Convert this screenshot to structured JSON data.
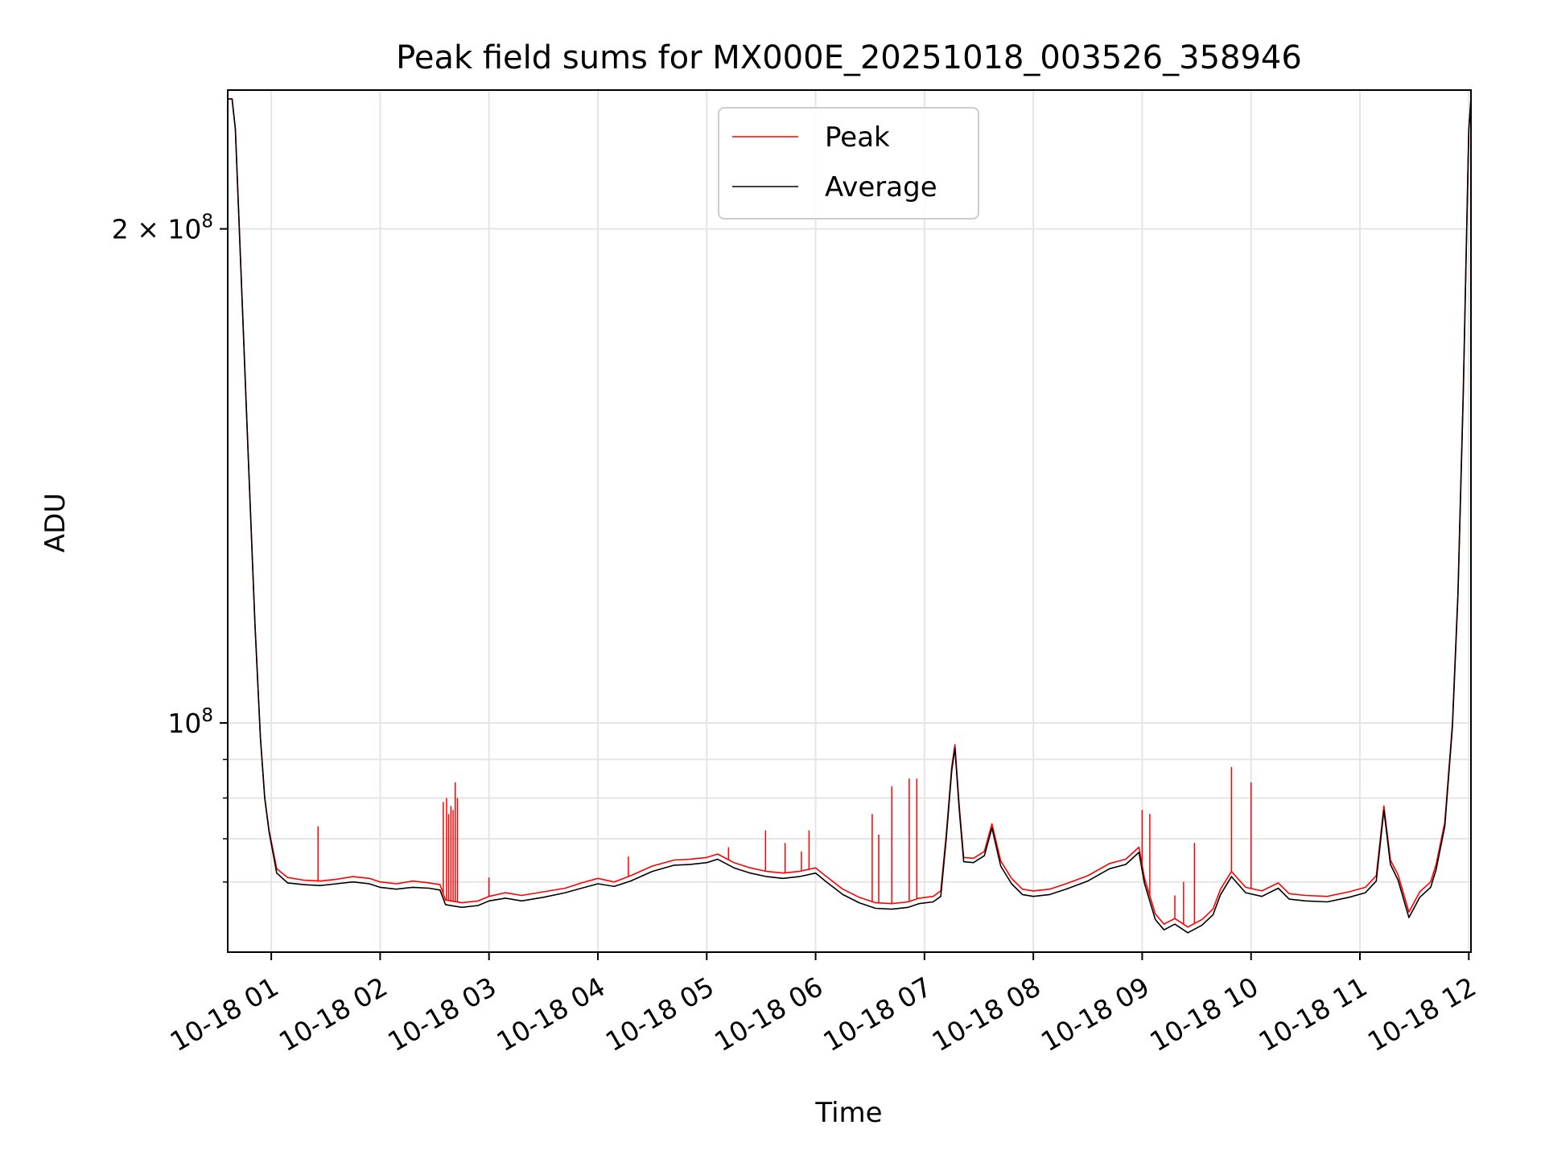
{
  "chart_data": {
    "type": "line",
    "title": "Peak field sums for MX000E_20251018_003526_358946",
    "xlabel": "Time",
    "ylabel": "ADU",
    "yscale": "log",
    "xlim": [
      0.6,
      12.02
    ],
    "ylim": [
      72500000,
      243000000
    ],
    "grid": true,
    "legend_position": "upper center",
    "x_ticks": [
      1,
      2,
      3,
      4,
      5,
      6,
      7,
      8,
      9,
      10,
      11,
      12
    ],
    "x_tick_labels": [
      "10-18 01",
      "10-18 02",
      "10-18 03",
      "10-18 04",
      "10-18 05",
      "10-18 06",
      "10-18 07",
      "10-18 08",
      "10-18 09",
      "10-18 10",
      "10-18 11",
      "10-18 12"
    ],
    "y_major_ticks": [
      100000000,
      200000000
    ],
    "y_major_tick_labels": [
      {
        "base": "10",
        "exp": "8",
        "prefix": ""
      },
      {
        "base": "10",
        "exp": "8",
        "prefix": "2 × "
      }
    ],
    "y_minor_ticks": [
      80000000,
      85000000,
      90000000,
      95000000
    ],
    "series": [
      {
        "name": "Peak",
        "color": "#ff0000",
        "points": [
          [
            0.6,
            240000000
          ],
          [
            0.64,
            240000000
          ],
          [
            0.67,
            230000000
          ],
          [
            0.72,
            190000000
          ],
          [
            0.78,
            150000000
          ],
          [
            0.85,
            115000000
          ],
          [
            0.9,
            98000000
          ],
          [
            0.94,
            90000000
          ],
          [
            0.98,
            86000000
          ],
          [
            1.05,
            81500000
          ],
          [
            1.15,
            80500000
          ],
          [
            1.3,
            80200000
          ],
          [
            1.45,
            80100000
          ],
          [
            1.6,
            80300000
          ],
          [
            1.75,
            80600000
          ],
          [
            1.9,
            80400000
          ],
          [
            2.0,
            80000000
          ],
          [
            2.15,
            79800000
          ],
          [
            2.3,
            80100000
          ],
          [
            2.45,
            79900000
          ],
          [
            2.55,
            79700000
          ],
          [
            2.6,
            78000000
          ],
          [
            2.75,
            77700000
          ],
          [
            2.9,
            77900000
          ],
          [
            3.0,
            78400000
          ],
          [
            3.15,
            78800000
          ],
          [
            3.3,
            78500000
          ],
          [
            3.5,
            78900000
          ],
          [
            3.7,
            79300000
          ],
          [
            3.85,
            79900000
          ],
          [
            4.0,
            80400000
          ],
          [
            4.15,
            80000000
          ],
          [
            4.3,
            80700000
          ],
          [
            4.5,
            81800000
          ],
          [
            4.7,
            82500000
          ],
          [
            4.85,
            82600000
          ],
          [
            5.0,
            82800000
          ],
          [
            5.1,
            83200000
          ],
          [
            5.25,
            82200000
          ],
          [
            5.4,
            81600000
          ],
          [
            5.55,
            81200000
          ],
          [
            5.7,
            81000000
          ],
          [
            5.85,
            81200000
          ],
          [
            6.0,
            81600000
          ],
          [
            6.1,
            80600000
          ],
          [
            6.25,
            79200000
          ],
          [
            6.4,
            78300000
          ],
          [
            6.55,
            77700000
          ],
          [
            6.7,
            77600000
          ],
          [
            6.85,
            77800000
          ],
          [
            6.95,
            78200000
          ],
          [
            7.08,
            78400000
          ],
          [
            7.15,
            79000000
          ],
          [
            7.2,
            85500000
          ],
          [
            7.25,
            94000000
          ],
          [
            7.28,
            97000000
          ],
          [
            7.32,
            89000000
          ],
          [
            7.36,
            82800000
          ],
          [
            7.45,
            82700000
          ],
          [
            7.55,
            83500000
          ],
          [
            7.62,
            86800000
          ],
          [
            7.7,
            82400000
          ],
          [
            7.8,
            80400000
          ],
          [
            7.9,
            79200000
          ],
          [
            8.0,
            79000000
          ],
          [
            8.15,
            79200000
          ],
          [
            8.3,
            79800000
          ],
          [
            8.5,
            80700000
          ],
          [
            8.7,
            82100000
          ],
          [
            8.85,
            82600000
          ],
          [
            8.97,
            84000000
          ],
          [
            9.02,
            80500000
          ],
          [
            9.12,
            76500000
          ],
          [
            9.2,
            75400000
          ],
          [
            9.3,
            76000000
          ],
          [
            9.42,
            75100000
          ],
          [
            9.55,
            75900000
          ],
          [
            9.65,
            77000000
          ],
          [
            9.72,
            79200000
          ],
          [
            9.82,
            81200000
          ],
          [
            9.95,
            79400000
          ],
          [
            10.1,
            79000000
          ],
          [
            10.25,
            79900000
          ],
          [
            10.35,
            78700000
          ],
          [
            10.5,
            78500000
          ],
          [
            10.7,
            78400000
          ],
          [
            10.9,
            78900000
          ],
          [
            11.05,
            79400000
          ],
          [
            11.15,
            80700000
          ],
          [
            11.22,
            89000000
          ],
          [
            11.28,
            82500000
          ],
          [
            11.35,
            80800000
          ],
          [
            11.45,
            76700000
          ],
          [
            11.55,
            78900000
          ],
          [
            11.65,
            80000000
          ],
          [
            11.7,
            82000000
          ],
          [
            11.78,
            87000000
          ],
          [
            11.85,
            100000000
          ],
          [
            11.9,
            120000000
          ],
          [
            11.95,
            160000000
          ],
          [
            12.0,
            230000000
          ],
          [
            12.02,
            240000000
          ]
        ]
      },
      {
        "name": "Average",
        "color": "#000000",
        "points": [
          [
            0.6,
            240000000
          ],
          [
            0.64,
            240000000
          ],
          [
            0.67,
            230000000
          ],
          [
            0.72,
            190000000
          ],
          [
            0.78,
            150000000
          ],
          [
            0.85,
            115000000
          ],
          [
            0.9,
            98000000
          ],
          [
            0.94,
            90000000
          ],
          [
            0.98,
            85800000
          ],
          [
            1.05,
            81000000
          ],
          [
            1.15,
            79900000
          ],
          [
            1.3,
            79700000
          ],
          [
            1.45,
            79600000
          ],
          [
            1.6,
            79800000
          ],
          [
            1.75,
            80000000
          ],
          [
            1.9,
            79800000
          ],
          [
            2.0,
            79400000
          ],
          [
            2.15,
            79200000
          ],
          [
            2.3,
            79400000
          ],
          [
            2.45,
            79300000
          ],
          [
            2.55,
            79100000
          ],
          [
            2.6,
            77500000
          ],
          [
            2.75,
            77200000
          ],
          [
            2.9,
            77400000
          ],
          [
            3.0,
            77900000
          ],
          [
            3.15,
            78200000
          ],
          [
            3.3,
            77900000
          ],
          [
            3.5,
            78300000
          ],
          [
            3.7,
            78800000
          ],
          [
            3.85,
            79300000
          ],
          [
            4.0,
            79800000
          ],
          [
            4.15,
            79500000
          ],
          [
            4.3,
            80100000
          ],
          [
            4.5,
            81200000
          ],
          [
            4.7,
            81900000
          ],
          [
            4.85,
            82000000
          ],
          [
            5.0,
            82200000
          ],
          [
            5.1,
            82600000
          ],
          [
            5.25,
            81600000
          ],
          [
            5.4,
            81000000
          ],
          [
            5.55,
            80600000
          ],
          [
            5.7,
            80400000
          ],
          [
            5.85,
            80600000
          ],
          [
            6.0,
            81000000
          ],
          [
            6.1,
            80000000
          ],
          [
            6.25,
            78600000
          ],
          [
            6.4,
            77700000
          ],
          [
            6.55,
            77100000
          ],
          [
            6.7,
            77000000
          ],
          [
            6.85,
            77200000
          ],
          [
            6.95,
            77600000
          ],
          [
            7.08,
            77800000
          ],
          [
            7.15,
            78400000
          ],
          [
            7.2,
            85000000
          ],
          [
            7.25,
            93500000
          ],
          [
            7.28,
            96500000
          ],
          [
            7.32,
            88500000
          ],
          [
            7.36,
            82300000
          ],
          [
            7.45,
            82200000
          ],
          [
            7.55,
            83000000
          ],
          [
            7.62,
            86300000
          ],
          [
            7.7,
            81800000
          ],
          [
            7.8,
            79800000
          ],
          [
            7.9,
            78600000
          ],
          [
            8.0,
            78400000
          ],
          [
            8.15,
            78600000
          ],
          [
            8.3,
            79200000
          ],
          [
            8.5,
            80100000
          ],
          [
            8.7,
            81500000
          ],
          [
            8.85,
            82000000
          ],
          [
            8.97,
            83400000
          ],
          [
            9.02,
            79900000
          ],
          [
            9.12,
            75900000
          ],
          [
            9.2,
            74800000
          ],
          [
            9.3,
            75400000
          ],
          [
            9.42,
            74500000
          ],
          [
            9.55,
            75300000
          ],
          [
            9.65,
            76400000
          ],
          [
            9.72,
            78600000
          ],
          [
            9.82,
            80600000
          ],
          [
            9.95,
            78800000
          ],
          [
            10.1,
            78400000
          ],
          [
            10.25,
            79300000
          ],
          [
            10.35,
            78100000
          ],
          [
            10.5,
            77900000
          ],
          [
            10.7,
            77800000
          ],
          [
            10.9,
            78300000
          ],
          [
            11.05,
            78800000
          ],
          [
            11.15,
            80100000
          ],
          [
            11.22,
            88500000
          ],
          [
            11.28,
            82000000
          ],
          [
            11.35,
            80200000
          ],
          [
            11.45,
            76100000
          ],
          [
            11.55,
            78300000
          ],
          [
            11.65,
            79400000
          ],
          [
            11.7,
            81400000
          ],
          [
            11.78,
            86500000
          ],
          [
            11.85,
            99500000
          ],
          [
            11.9,
            119500000
          ],
          [
            11.95,
            159000000
          ],
          [
            12.0,
            230000000
          ],
          [
            12.02,
            240000000
          ]
        ]
      }
    ],
    "spikes": [
      {
        "x": 1.43,
        "y": 86500000
      },
      {
        "x": 2.58,
        "y": 89500000
      },
      {
        "x": 2.61,
        "y": 90000000
      },
      {
        "x": 2.63,
        "y": 88000000
      },
      {
        "x": 2.65,
        "y": 89000000
      },
      {
        "x": 2.67,
        "y": 88500000
      },
      {
        "x": 2.69,
        "y": 92000000
      },
      {
        "x": 2.71,
        "y": 90000000
      },
      {
        "x": 3.0,
        "y": 80500000
      },
      {
        "x": 4.28,
        "y": 82900000
      },
      {
        "x": 5.2,
        "y": 84000000
      },
      {
        "x": 5.54,
        "y": 86000000
      },
      {
        "x": 5.72,
        "y": 84500000
      },
      {
        "x": 5.87,
        "y": 83500000
      },
      {
        "x": 5.94,
        "y": 86000000
      },
      {
        "x": 6.52,
        "y": 88000000
      },
      {
        "x": 6.58,
        "y": 85500000
      },
      {
        "x": 6.7,
        "y": 91500000
      },
      {
        "x": 6.86,
        "y": 92500000
      },
      {
        "x": 6.93,
        "y": 92500000
      },
      {
        "x": 9.0,
        "y": 88500000
      },
      {
        "x": 9.07,
        "y": 88000000
      },
      {
        "x": 9.3,
        "y": 78500000
      },
      {
        "x": 9.38,
        "y": 80000000
      },
      {
        "x": 9.48,
        "y": 84500000
      },
      {
        "x": 9.82,
        "y": 94000000
      },
      {
        "x": 10.0,
        "y": 92000000
      }
    ]
  },
  "legend": {
    "entries": [
      {
        "label": "Peak",
        "color": "#ff0000"
      },
      {
        "label": "Average",
        "color": "#000000"
      }
    ]
  }
}
